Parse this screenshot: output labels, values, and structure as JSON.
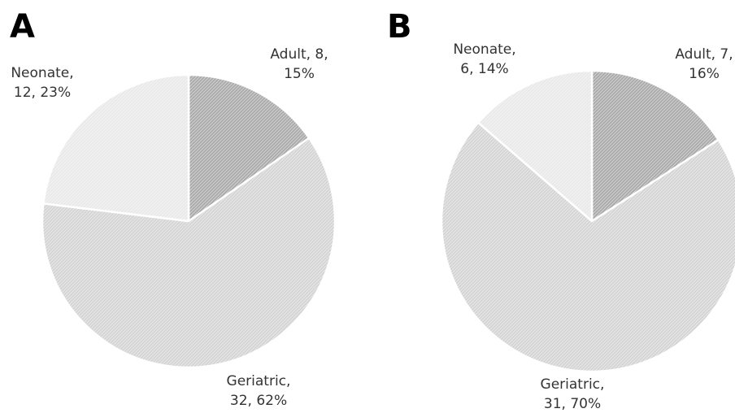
{
  "chart_data": [
    {
      "type": "pie",
      "panel_label": "A",
      "slices": [
        {
          "name": "Adult",
          "value": 8,
          "percent": "15%",
          "color": "#aaaaaa",
          "label_lines": [
            "Adult, 8,",
            "15%"
          ]
        },
        {
          "name": "Geriatric",
          "value": 32,
          "percent": "62%",
          "color": "#d4d4d4",
          "label_lines": [
            "Geriatric,",
            "32, 62%"
          ]
        },
        {
          "name": "Neonate",
          "value": 12,
          "percent": "23%",
          "color": "#e9e9e9",
          "label_lines": [
            "Neonate,",
            "12, 23%"
          ]
        }
      ]
    },
    {
      "type": "pie",
      "panel_label": "B",
      "slices": [
        {
          "name": "Adult",
          "value": 7,
          "percent": "16%",
          "color": "#aaaaaa",
          "label_lines": [
            "Adult, 7,",
            "16%"
          ]
        },
        {
          "name": "Geriatric",
          "value": 31,
          "percent": "70%",
          "color": "#d4d4d4",
          "label_lines": [
            "Geriatric,",
            "31, 70%"
          ]
        },
        {
          "name": "Neonate",
          "value": 6,
          "percent": "14%",
          "color": "#e9e9e9",
          "label_lines": [
            "Neonate,",
            "6, 14%"
          ]
        }
      ]
    }
  ]
}
